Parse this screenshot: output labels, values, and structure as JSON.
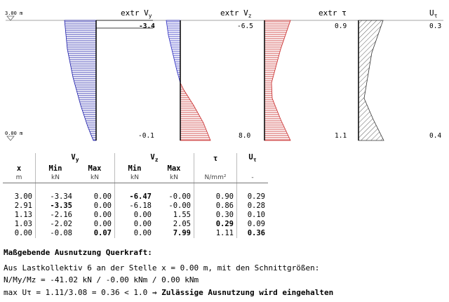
{
  "diagram": {
    "titles": {
      "vy": "extr V",
      "vy_sub": "y",
      "vz": "extr V",
      "vz_sub": "z",
      "tau": "extr τ",
      "ut": "U",
      "ut_sub": "τ"
    },
    "elevation_top": "3.00 m",
    "elevation_bottom": "0.00 m",
    "vy_top_value": "-3.4",
    "vy_bottom_value": "-0.1",
    "vz_top_value": "-6.5",
    "vz_bottom_value": "8.0",
    "tau_top_value": "0.9",
    "tau_bottom_value": "1.1",
    "ut_top_value": "0.3",
    "ut_bottom_value": "0.4"
  },
  "colors": {
    "vy": "#1a1aa8",
    "vz_neg": "#2b2bc0",
    "vz_pos": "#c82828",
    "tau": "#c82828",
    "ut": "#333333"
  },
  "table": {
    "group_headers": {
      "vy": "V",
      "vy_sub": "y",
      "vz": "V",
      "vz_sub": "z",
      "tau": "τ",
      "ut": "U",
      "ut_sub": "τ"
    },
    "col_x": "x",
    "col_min": "Min",
    "col_max": "Max",
    "units": {
      "x": "m",
      "vy_min": "kN",
      "vy_max": "kN",
      "vz_min": "kN",
      "vz_max": "kN",
      "tau": "N/mm²",
      "ut": "-"
    },
    "rows": [
      {
        "x": "3.00",
        "vy_min": "-3.34",
        "vy_max": "0.00",
        "vz_min": "-6.47",
        "vz_max": "-0.00",
        "tau": "0.90",
        "ut": "0.29"
      },
      {
        "x": "2.91",
        "vy_min": "-3.35",
        "vy_max": "0.00",
        "vz_min": "-6.18",
        "vz_max": "-0.00",
        "tau": "0.86",
        "ut": "0.28"
      },
      {
        "x": "1.13",
        "vy_min": "-2.16",
        "vy_max": "0.00",
        "vz_min": "0.00",
        "vz_max": "1.55",
        "tau": "0.30",
        "ut": "0.10"
      },
      {
        "x": "1.03",
        "vy_min": "-2.02",
        "vy_max": "0.00",
        "vz_min": "0.00",
        "vz_max": "2.05",
        "tau": "0.29",
        "ut": "0.09"
      },
      {
        "x": "0.00",
        "vy_min": "-0.08",
        "vy_max": "0.07",
        "vz_min": "0.00",
        "vz_max": "7.99",
        "tau": "1.11",
        "ut": "0.36"
      }
    ]
  },
  "summary": {
    "heading": "Maßgebende Ausnutzung Querkraft:",
    "line1": "Aus Lastkollektiv 6 an der Stelle x = 0.00 m, mit den Schnittgrößen:",
    "line2": "N/My/Mz = -41.02 kN / -0.00 kNm / 0.00 kNm",
    "line3": "max Uτ = 1.11/3.08 = 0.36 < 1.0",
    "arrow": "⇒",
    "verdict": "Zulässige Ausnutzung wird eingehalten"
  }
}
